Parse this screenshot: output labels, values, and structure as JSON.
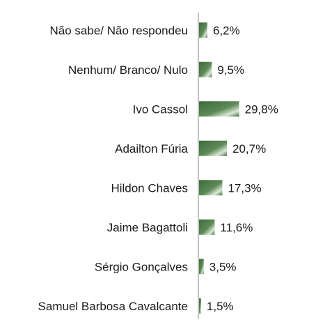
{
  "chart_data": {
    "type": "bar",
    "orientation": "horizontal",
    "categories": [
      "Não sabe/ Não respondeu",
      "Nenhum/ Branco/ Nulo",
      "Ivo Cassol",
      "Adailton Fúria",
      "Hildon Chaves",
      "Jaime Bagattoli",
      "Sérgio Gonçalves",
      "Samuel Barbosa Cavalcante"
    ],
    "values": [
      6.2,
      9.5,
      29.8,
      20.7,
      17.3,
      11.6,
      3.5,
      1.5
    ],
    "data_labels": [
      "6,2%",
      "9,5%",
      "29,8%",
      "20,7%",
      "17,3%",
      "11,6%",
      "3,5%",
      "1,5%"
    ],
    "xlim": [
      0,
      30
    ],
    "grid": false,
    "legend": "none",
    "colors": {
      "bar_dark": "#3c6a3a",
      "bar_mid": "#5e8a58",
      "bar_light": "#dbe8d6",
      "axis": "#8a8a8a",
      "text": "#1a1a1a"
    }
  }
}
